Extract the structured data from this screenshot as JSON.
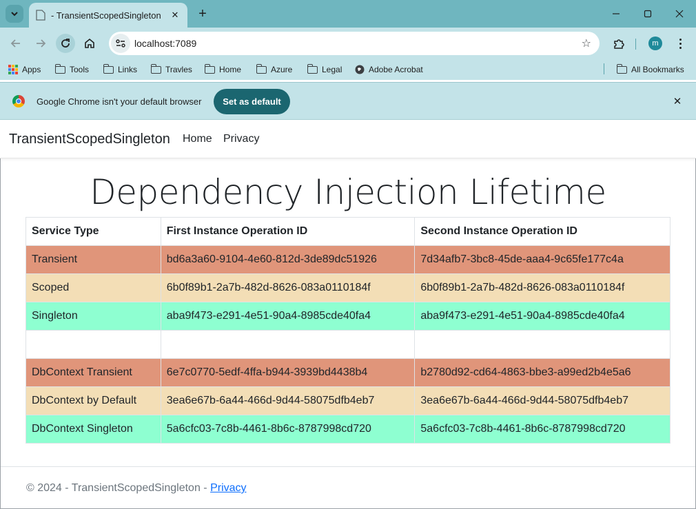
{
  "browser": {
    "tab_title": "- TransientScopedSingleton",
    "url": "localhost:7089",
    "profile_initial": "m",
    "bookmarks": [
      {
        "label": "Apps",
        "icon": "apps-icon"
      },
      {
        "label": "Tools",
        "icon": "folder-icon"
      },
      {
        "label": "Links",
        "icon": "folder-icon"
      },
      {
        "label": "Travles",
        "icon": "folder-icon"
      },
      {
        "label": "Home",
        "icon": "folder-icon"
      },
      {
        "label": "Azure",
        "icon": "folder-icon"
      },
      {
        "label": "Legal",
        "icon": "folder-icon"
      },
      {
        "label": "Adobe Acrobat",
        "icon": "globe-icon"
      }
    ],
    "all_bookmarks": "All Bookmarks",
    "infobar": {
      "message": "Google Chrome isn't your default browser",
      "button": "Set as default"
    }
  },
  "site": {
    "brand": "TransientScopedSingleton",
    "nav": [
      "Home",
      "Privacy"
    ]
  },
  "main": {
    "title": "Dependency Injection Lifetime",
    "table": {
      "headers": [
        "Service Type",
        "First Instance Operation ID",
        "Second Instance Operation ID"
      ],
      "rows": [
        {
          "type": "Transient",
          "first": "bd6a3a60-9104-4e60-812d-3de89dc51926",
          "second": "7d34afb7-3bc8-45de-aaa4-9c65fe177c4a",
          "color": "#e0957a"
        },
        {
          "type": "Scoped",
          "first": "6b0f89b1-2a7b-482d-8626-083a0110184f",
          "second": "6b0f89b1-2a7b-482d-8626-083a0110184f",
          "color": "#f3deb6"
        },
        {
          "type": "Singleton",
          "first": "aba9f473-e291-4e51-90a4-8985cde40fa4",
          "second": "aba9f473-e291-4e51-90a4-8985cde40fa4",
          "color": "#8effd1"
        },
        {
          "type": "",
          "first": "",
          "second": "",
          "color": "#ffffff"
        },
        {
          "type": "DbContext Transient",
          "first": "6e7c0770-5edf-4ffa-b944-3939bd4438b4",
          "second": "b2780d92-cd64-4863-bbe3-a99ed2b4e5a6",
          "color": "#e0957a"
        },
        {
          "type": "DbContext by Default",
          "first": "3ea6e67b-6a44-466d-9d44-58075dfb4eb7",
          "second": "3ea6e67b-6a44-466d-9d44-58075dfb4eb7",
          "color": "#f3deb6"
        },
        {
          "type": "DbContext Singleton",
          "first": "5a6cfc03-7c8b-4461-8b6c-8787998cd720",
          "second": "5a6cfc03-7c8b-4461-8b6c-8787998cd720",
          "color": "#8effd1"
        }
      ]
    }
  },
  "footer": {
    "text": "© 2024 - TransientScopedSingleton - ",
    "link": "Privacy"
  }
}
